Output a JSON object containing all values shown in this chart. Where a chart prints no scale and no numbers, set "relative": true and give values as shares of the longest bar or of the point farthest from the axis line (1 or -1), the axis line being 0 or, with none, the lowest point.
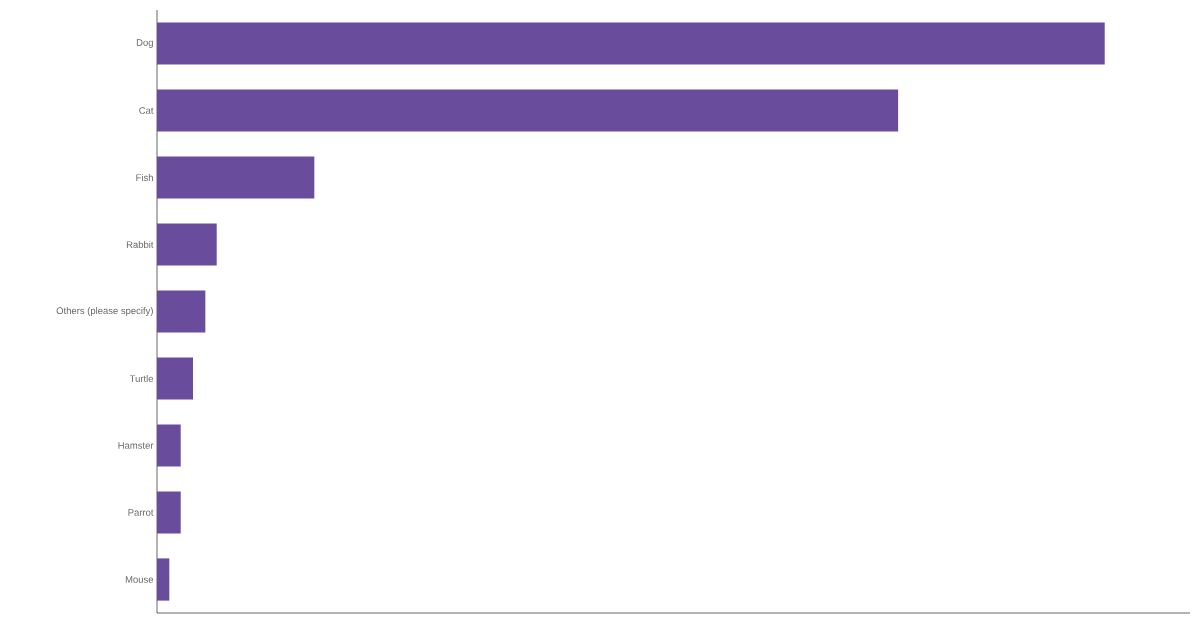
{
  "chart_data": {
    "type": "bar",
    "orientation": "horizontal",
    "relative": true,
    "categories": [
      "Dog",
      "Cat",
      "Fish",
      "Rabbit",
      "Others (please specify)",
      "Turtle",
      "Hamster",
      "Parrot",
      "Mouse"
    ],
    "values": [
      1,
      0.782,
      0.166,
      0.063,
      0.051,
      0.038,
      0.025,
      0.025,
      0.013
    ],
    "color": "#6a4c9c"
  }
}
